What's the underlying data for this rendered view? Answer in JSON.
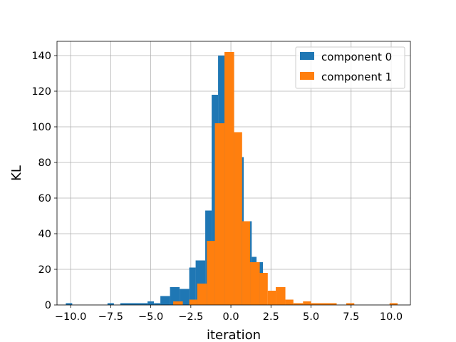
{
  "chart_data": {
    "type": "bar",
    "xlabel": "iteration",
    "ylabel": "KL",
    "xlim": [
      -10.85,
      11.2
    ],
    "ylim": [
      0,
      148
    ],
    "xticks": [
      -10.0,
      -7.5,
      -5.0,
      -2.5,
      0.0,
      2.5,
      5.0,
      7.5,
      10.0
    ],
    "xtick_labels": [
      "−10.0",
      "−7.5",
      "−5.0",
      "−2.5",
      "0.0",
      "2.5",
      "5.0",
      "7.5",
      "10.0"
    ],
    "yticks": [
      0,
      20,
      40,
      60,
      80,
      100,
      120,
      140
    ],
    "ytick_labels": [
      "0",
      "20",
      "40",
      "60",
      "80",
      "100",
      "120",
      "140"
    ],
    "grid": true,
    "legend_position": "top-right",
    "series": [
      {
        "name": "component 0",
        "color": "#1f77b4",
        "bins": [
          [
            -10.3,
            -9.9,
            1
          ],
          [
            -7.7,
            -7.3,
            1
          ],
          [
            -6.9,
            -5.2,
            1
          ],
          [
            -5.2,
            -4.8,
            2
          ],
          [
            -4.8,
            -4.4,
            1
          ],
          [
            -4.4,
            -3.8,
            5
          ],
          [
            -3.8,
            -3.2,
            10
          ],
          [
            -3.2,
            -2.6,
            9
          ],
          [
            -2.6,
            -2.2,
            21
          ],
          [
            -2.2,
            -1.6,
            25
          ],
          [
            -1.6,
            -1.2,
            53
          ],
          [
            -1.2,
            -0.8,
            118
          ],
          [
            -0.8,
            0.0,
            140
          ],
          [
            0.0,
            0.2,
            141
          ],
          [
            0.2,
            0.6,
            97
          ],
          [
            0.6,
            0.8,
            83
          ],
          [
            0.8,
            1.3,
            47
          ],
          [
            1.3,
            1.6,
            27
          ],
          [
            1.6,
            2.0,
            24
          ]
        ]
      },
      {
        "name": "component 1",
        "color": "#ff7f0e",
        "bins": [
          [
            -3.6,
            -3.0,
            2
          ],
          [
            -2.6,
            -2.1,
            3
          ],
          [
            -2.1,
            -1.5,
            12
          ],
          [
            -1.5,
            -1.0,
            36
          ],
          [
            -1.0,
            -0.4,
            102
          ],
          [
            -0.4,
            0.2,
            142
          ],
          [
            0.2,
            0.7,
            97
          ],
          [
            0.7,
            1.2,
            47
          ],
          [
            1.2,
            1.8,
            24
          ],
          [
            1.8,
            2.3,
            18
          ],
          [
            2.3,
            2.8,
            8
          ],
          [
            2.8,
            3.4,
            10
          ],
          [
            3.4,
            3.9,
            3
          ],
          [
            3.9,
            4.5,
            1
          ],
          [
            4.5,
            5.0,
            2
          ],
          [
            5.0,
            6.6,
            1
          ],
          [
            7.2,
            7.7,
            1
          ],
          [
            9.9,
            10.4,
            1
          ]
        ]
      }
    ]
  }
}
